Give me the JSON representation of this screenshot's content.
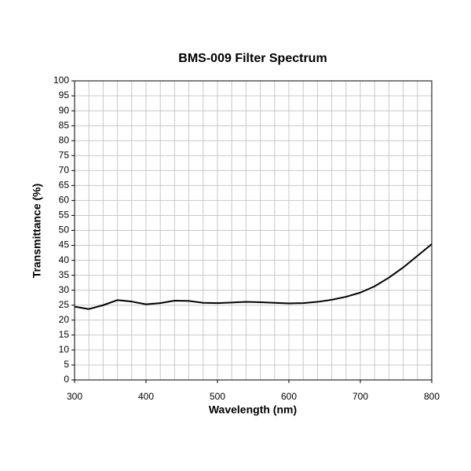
{
  "chart_data": {
    "type": "line",
    "title": "BMS-009 Filter Spectrum",
    "x_label": "Wavelength (nm)",
    "y_label": "Transmittance (%)",
    "x": [
      300,
      320,
      340,
      360,
      380,
      400,
      420,
      440,
      460,
      480,
      500,
      520,
      540,
      560,
      580,
      600,
      620,
      640,
      660,
      680,
      700,
      720,
      740,
      760,
      780,
      800
    ],
    "series": [
      {
        "name": "Transmittance",
        "color": "#000000",
        "values": [
          24.5,
          23.7,
          25.0,
          26.7,
          26.2,
          25.3,
          25.7,
          26.5,
          26.4,
          25.8,
          25.7,
          25.9,
          26.1,
          26.0,
          25.8,
          25.6,
          25.7,
          26.1,
          26.8,
          27.8,
          29.2,
          31.3,
          34.2,
          37.6,
          41.5,
          45.4
        ]
      }
    ],
    "xlim": [
      300,
      800
    ],
    "xticks": [
      300,
      400,
      500,
      600,
      700,
      800
    ],
    "ylim": [
      0,
      100
    ],
    "yticks": [
      0,
      5,
      10,
      15,
      20,
      25,
      30,
      35,
      40,
      45,
      50,
      55,
      60,
      65,
      70,
      75,
      80,
      85,
      90,
      95,
      100
    ],
    "grid": true
  }
}
